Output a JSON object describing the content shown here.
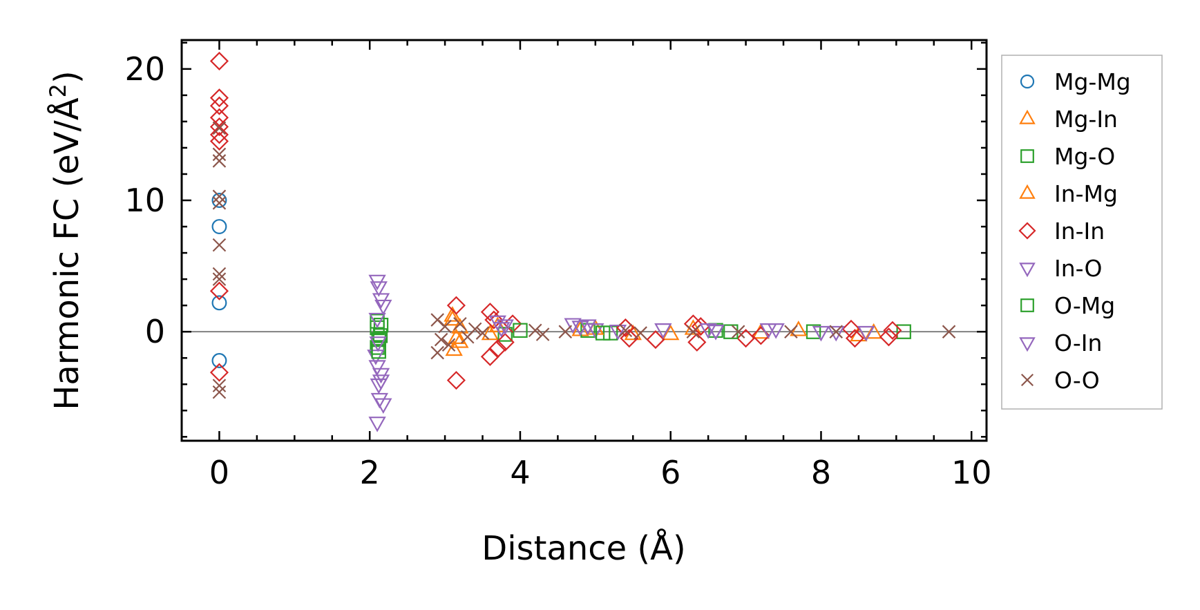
{
  "chart_data": {
    "type": "scatter",
    "xlabel": "Distance (Å)",
    "ylabel_main": "Harmonic FC (eV/Å",
    "ylabel_sup": "2",
    "ylabel_end": ")",
    "xlim": [
      -0.5,
      10.2
    ],
    "ylim": [
      -8.3,
      22.2
    ],
    "x_ticks": [
      0,
      2,
      4,
      6,
      8,
      10
    ],
    "x_tick_labels": [
      "0",
      "2",
      "4",
      "6",
      "8",
      "10"
    ],
    "y_ticks": [
      0,
      10,
      20
    ],
    "y_tick_labels": [
      "0",
      "10",
      "20"
    ],
    "x_minor_step": 0.5,
    "y_minor_step": 2,
    "zero_line": true,
    "legend_position": "outside-right",
    "series": [
      {
        "name": "Mg-Mg",
        "color": "#1f77b4",
        "marker": "circle",
        "points": [
          [
            0,
            10.0
          ],
          [
            0,
            8.0
          ],
          [
            0,
            2.2
          ],
          [
            0,
            -2.2
          ]
        ]
      },
      {
        "name": "Mg-In",
        "color": "#ff7f0e",
        "marker": "triangle-up",
        "points": [
          [
            3.1,
            1.2
          ],
          [
            3.15,
            -0.5
          ],
          [
            3.12,
            -1.4
          ],
          [
            3.2,
            0.3
          ],
          [
            3.6,
            -0.2
          ],
          [
            3.7,
            0.4
          ],
          [
            4.8,
            0.1
          ],
          [
            5.5,
            -0.2
          ],
          [
            6.3,
            0.2
          ],
          [
            7.2,
            -0.1
          ],
          [
            8.5,
            -0.3
          ]
        ]
      },
      {
        "name": "Mg-O",
        "color": "#2ca02c",
        "marker": "square",
        "points": [
          [
            2.1,
            0.3
          ],
          [
            2.12,
            -0.6
          ],
          [
            2.1,
            -1.2
          ],
          [
            2.15,
            0.5
          ],
          [
            3.8,
            -0.2
          ],
          [
            4.9,
            0.1
          ],
          [
            5.2,
            -0.1
          ],
          [
            6.6,
            0.1
          ],
          [
            7.9,
            0.0
          ],
          [
            9.1,
            0.0
          ]
        ]
      },
      {
        "name": "In-Mg",
        "color": "#ff7f0e",
        "marker": "triangle-up",
        "points": [
          [
            3.1,
            0.9
          ],
          [
            3.2,
            -0.8
          ],
          [
            5.0,
            0.2
          ],
          [
            6.0,
            -0.2
          ],
          [
            7.7,
            0.1
          ],
          [
            8.7,
            -0.1
          ]
        ]
      },
      {
        "name": "In-In",
        "color": "#d62728",
        "marker": "diamond",
        "points": [
          [
            0,
            20.6
          ],
          [
            0,
            17.8
          ],
          [
            0,
            17.2
          ],
          [
            0,
            16.3
          ],
          [
            0,
            15.6
          ],
          [
            0,
            15.0
          ],
          [
            0,
            14.5
          ],
          [
            0,
            3.1
          ],
          [
            0,
            -3.1
          ],
          [
            3.15,
            2.0
          ],
          [
            3.15,
            -3.7
          ],
          [
            3.6,
            1.5
          ],
          [
            3.65,
            0.9
          ],
          [
            3.6,
            -1.9
          ],
          [
            3.7,
            -1.3
          ],
          [
            3.8,
            -0.8
          ],
          [
            3.9,
            0.6
          ],
          [
            5.4,
            0.3
          ],
          [
            5.45,
            -0.5
          ],
          [
            5.8,
            -0.6
          ],
          [
            6.3,
            0.6
          ],
          [
            6.35,
            -0.8
          ],
          [
            6.4,
            0.4
          ],
          [
            7.0,
            -0.5
          ],
          [
            7.2,
            -0.3
          ],
          [
            8.4,
            0.2
          ],
          [
            8.45,
            -0.5
          ],
          [
            8.9,
            -0.4
          ],
          [
            8.95,
            0.1
          ]
        ]
      },
      {
        "name": "In-O",
        "color": "#9467bd",
        "marker": "triangle-down",
        "points": [
          [
            2.1,
            3.9
          ],
          [
            2.12,
            3.4
          ],
          [
            2.18,
            2.0
          ],
          [
            2.08,
            -1.8
          ],
          [
            2.1,
            -2.6
          ],
          [
            2.15,
            -3.2
          ],
          [
            2.12,
            -4.0
          ],
          [
            2.13,
            -5.1
          ],
          [
            2.18,
            -5.5
          ],
          [
            2.1,
            -6.9
          ],
          [
            3.8,
            0.5
          ],
          [
            4.8,
            0.4
          ],
          [
            5.0,
            0.2
          ],
          [
            5.9,
            0.2
          ],
          [
            6.6,
            0.1
          ],
          [
            7.4,
            0.2
          ],
          [
            8.0,
            0.0
          ],
          [
            8.6,
            0.0
          ]
        ]
      },
      {
        "name": "O-Mg",
        "color": "#2ca02c",
        "marker": "square",
        "points": [
          [
            2.1,
            0.8
          ],
          [
            2.14,
            -0.3
          ],
          [
            2.12,
            -1.5
          ],
          [
            4.0,
            0.1
          ],
          [
            5.1,
            -0.1
          ],
          [
            6.8,
            0.0
          ]
        ]
      },
      {
        "name": "O-In",
        "color": "#9467bd",
        "marker": "triangle-down",
        "points": [
          [
            2.15,
            2.5
          ],
          [
            2.1,
            1.0
          ],
          [
            2.11,
            -0.8
          ],
          [
            2.15,
            -3.7
          ],
          [
            3.7,
            0.8
          ],
          [
            3.75,
            0.3
          ],
          [
            4.7,
            0.6
          ],
          [
            4.9,
            0.5
          ],
          [
            5.3,
            0.1
          ],
          [
            6.5,
            0.2
          ],
          [
            6.6,
            0.1
          ],
          [
            7.3,
            0.2
          ],
          [
            8.2,
            0.0
          ]
        ]
      },
      {
        "name": "O-O",
        "color": "#8c564b",
        "marker": "x",
        "points": [
          [
            0,
            15.5
          ],
          [
            0,
            13.5
          ],
          [
            0,
            13.0
          ],
          [
            0,
            10.3
          ],
          [
            0,
            9.8
          ],
          [
            0,
            6.6
          ],
          [
            0,
            4.4
          ],
          [
            0,
            4.0
          ],
          [
            0,
            -4.1
          ],
          [
            0,
            -4.6
          ],
          [
            2.9,
            0.9
          ],
          [
            2.95,
            -0.6
          ],
          [
            2.9,
            -1.6
          ],
          [
            3.0,
            0.4
          ],
          [
            3.05,
            -1.0
          ],
          [
            3.2,
            0.6
          ],
          [
            3.3,
            -0.4
          ],
          [
            3.4,
            0.2
          ],
          [
            3.5,
            -0.1
          ],
          [
            4.2,
            0.1
          ],
          [
            4.3,
            -0.2
          ],
          [
            4.6,
            0.0
          ],
          [
            5.4,
            0.1
          ],
          [
            5.6,
            -0.1
          ],
          [
            6.3,
            0.0
          ],
          [
            6.9,
            0.0
          ],
          [
            7.6,
            0.0
          ],
          [
            8.2,
            0.0
          ],
          [
            9.7,
            0.0
          ]
        ]
      }
    ]
  }
}
